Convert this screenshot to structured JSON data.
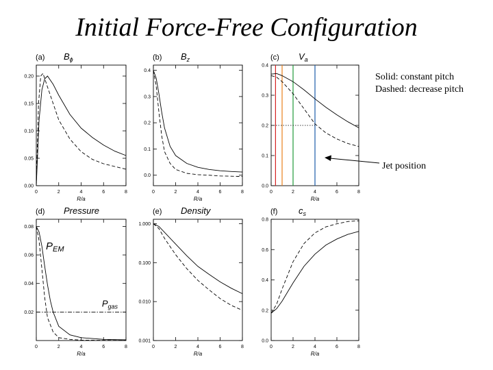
{
  "slide": {
    "title": "Initial Force-Free Configuration"
  },
  "legend_note": {
    "line1": "Solid: constant pitch",
    "line2": "Dashed: decrease pitch"
  },
  "annotation": {
    "jet_label": "Jet position"
  },
  "colors": {
    "red": "#d42020",
    "orange": "#e8801a",
    "green": "#1e9a3a",
    "blue": "#1a5aa8",
    "black": "#000000"
  },
  "chart_data": [
    {
      "panel": "(a)",
      "title": "B_ϕ",
      "type": "line",
      "xlabel": "R/a",
      "ylabel": "",
      "xlim": [
        0,
        8
      ],
      "ylim": [
        0,
        0.22
      ],
      "xticks": [
        0,
        2,
        4,
        6,
        8
      ],
      "yticks": [
        0,
        0.05,
        0.1,
        0.15,
        0.2
      ],
      "ytick_labels": [
        "0.00",
        "0.05",
        "0.10",
        "0.15",
        "0.20"
      ],
      "series": [
        {
          "style": "solid",
          "x": [
            0,
            0.25,
            0.5,
            0.75,
            1,
            1.5,
            2,
            3,
            4,
            5,
            6,
            7,
            8
          ],
          "y": [
            0,
            0.12,
            0.175,
            0.195,
            0.2,
            0.185,
            0.165,
            0.13,
            0.105,
            0.088,
            0.074,
            0.063,
            0.055
          ]
        },
        {
          "style": "dashed",
          "x": [
            0,
            0.2,
            0.4,
            0.6,
            1,
            1.5,
            2,
            3,
            4,
            5,
            6,
            7,
            8
          ],
          "y": [
            0,
            0.15,
            0.2,
            0.205,
            0.18,
            0.15,
            0.12,
            0.085,
            0.062,
            0.048,
            0.04,
            0.035,
            0.03
          ]
        }
      ]
    },
    {
      "panel": "(b)",
      "title": "B_z",
      "type": "line",
      "xlabel": "R/a",
      "ylabel": "",
      "xlim": [
        0,
        8
      ],
      "ylim": [
        -0.04,
        0.42
      ],
      "xticks": [
        0,
        2,
        4,
        6,
        8
      ],
      "yticks": [
        0.0,
        0.1,
        0.2,
        0.3,
        0.4
      ],
      "ytick_labels": [
        "0.0",
        "0.1",
        "0.2",
        "0.3",
        "0.4"
      ],
      "series": [
        {
          "style": "solid",
          "x": [
            0,
            0.25,
            0.5,
            0.75,
            1,
            1.5,
            2,
            3,
            4,
            5,
            6,
            7,
            8
          ],
          "y": [
            0.4,
            0.37,
            0.31,
            0.24,
            0.18,
            0.11,
            0.075,
            0.045,
            0.03,
            0.022,
            0.017,
            0.014,
            0.012
          ]
        },
        {
          "style": "dashed",
          "x": [
            0,
            0.25,
            0.5,
            0.75,
            1,
            1.5,
            2,
            3,
            4,
            5,
            6,
            7,
            8
          ],
          "y": [
            0.4,
            0.34,
            0.24,
            0.15,
            0.09,
            0.045,
            0.022,
            0.007,
            0.002,
            0.0,
            -0.003,
            -0.004,
            -0.005
          ]
        }
      ]
    },
    {
      "panel": "(c)",
      "title": "V_a",
      "type": "line",
      "xlabel": "R/a",
      "ylabel": "",
      "xlim": [
        0,
        8
      ],
      "ylim": [
        0,
        0.4
      ],
      "xticks": [
        0,
        2,
        4,
        6,
        8
      ],
      "yticks": [
        0.0,
        0.1,
        0.2,
        0.3,
        0.4
      ],
      "ytick_labels": [
        "0.0",
        "0.1",
        "0.2",
        "0.3",
        "0.4"
      ],
      "series": [
        {
          "style": "solid",
          "x": [
            0,
            0.5,
            1,
            2,
            3,
            4,
            5,
            6,
            7,
            8
          ],
          "y": [
            0.37,
            0.372,
            0.365,
            0.345,
            0.318,
            0.288,
            0.26,
            0.235,
            0.212,
            0.192
          ]
        },
        {
          "style": "dashed",
          "x": [
            0,
            0.5,
            1,
            2,
            3,
            4,
            5,
            6,
            7,
            8
          ],
          "y": [
            0.365,
            0.36,
            0.345,
            0.305,
            0.255,
            0.205,
            0.175,
            0.155,
            0.14,
            0.13
          ]
        }
      ],
      "jet_lines": [
        {
          "x": 0.4,
          "color": "red"
        },
        {
          "x": 1.0,
          "color": "orange"
        },
        {
          "x": 2.0,
          "color": "green"
        },
        {
          "x": 4.0,
          "color": "blue"
        }
      ],
      "reference_y": 0.2
    },
    {
      "panel": "(d)",
      "title": "Pressure",
      "type": "line",
      "xlabel": "R/a",
      "ylabel": "",
      "xlim": [
        0,
        8
      ],
      "ylim": [
        0,
        0.085
      ],
      "xticks": [
        0,
        2,
        4,
        6,
        8
      ],
      "yticks": [
        0.02,
        0.04,
        0.06,
        0.08
      ],
      "ytick_labels": [
        "0.02",
        "0.04",
        "0.06",
        "0.08"
      ],
      "series": [
        {
          "name": "P_EM",
          "style": "solid",
          "x": [
            0,
            0.25,
            0.5,
            0.75,
            1,
            1.25,
            1.5,
            2,
            3,
            4,
            6,
            8
          ],
          "y": [
            0.08,
            0.076,
            0.066,
            0.052,
            0.039,
            0.028,
            0.02,
            0.01,
            0.004,
            0.002,
            0.0008,
            0.0005
          ]
        },
        {
          "style": "dashed",
          "x": [
            0,
            0.25,
            0.5,
            0.75,
            1,
            1.5,
            2,
            3,
            4,
            6,
            8
          ],
          "y": [
            0.08,
            0.07,
            0.05,
            0.03,
            0.016,
            0.006,
            0.002,
            0.0008,
            0.0003,
            0.0002,
            0.0001
          ]
        },
        {
          "name": "P_gas",
          "style": "dashdot",
          "x": [
            0,
            8
          ],
          "y": [
            0.02,
            0.02
          ]
        }
      ],
      "labels": {
        "pem": "P_EM",
        "pgas": "P_gas"
      }
    },
    {
      "panel": "(e)",
      "title": "Density",
      "type": "line",
      "xlabel": "R/a",
      "ylabel": "",
      "yscale": "log",
      "xlim": [
        0,
        8
      ],
      "ylim": [
        0.001,
        1.3
      ],
      "xticks": [
        0,
        2,
        4,
        6,
        8
      ],
      "yticks": [
        0.001,
        0.01,
        0.1,
        1.0
      ],
      "ytick_labels": [
        "0.001",
        "0.010",
        "0.100",
        "1.000"
      ],
      "series": [
        {
          "style": "solid",
          "x": [
            0,
            0.5,
            1,
            2,
            3,
            4,
            5,
            6,
            7,
            8
          ],
          "y": [
            1.0,
            0.85,
            0.6,
            0.3,
            0.15,
            0.08,
            0.05,
            0.032,
            0.022,
            0.016
          ]
        },
        {
          "style": "dashed",
          "x": [
            0,
            0.5,
            1,
            2,
            3,
            4,
            5,
            6,
            7,
            8
          ],
          "y": [
            1.0,
            0.75,
            0.42,
            0.16,
            0.07,
            0.035,
            0.02,
            0.012,
            0.008,
            0.006
          ]
        }
      ]
    },
    {
      "panel": "(f)",
      "title": "c_s",
      "type": "line",
      "xlabel": "R/a",
      "ylabel": "",
      "xlim": [
        0,
        8
      ],
      "ylim": [
        0,
        0.8
      ],
      "xticks": [
        0,
        2,
        4,
        6,
        8
      ],
      "yticks": [
        0.0,
        0.2,
        0.4,
        0.6,
        0.8
      ],
      "ytick_labels": [
        "0.0",
        "0.2",
        "0.4",
        "0.6",
        "0.8"
      ],
      "series": [
        {
          "style": "solid",
          "x": [
            0,
            0.5,
            1,
            2,
            3,
            4,
            5,
            6,
            7,
            8
          ],
          "y": [
            0.18,
            0.21,
            0.26,
            0.38,
            0.49,
            0.57,
            0.63,
            0.67,
            0.7,
            0.72
          ]
        },
        {
          "style": "dashed",
          "x": [
            0,
            0.5,
            1,
            2,
            3,
            4,
            5,
            6,
            7,
            8
          ],
          "y": [
            0.18,
            0.24,
            0.34,
            0.52,
            0.64,
            0.71,
            0.75,
            0.77,
            0.785,
            0.79
          ]
        }
      ]
    }
  ]
}
